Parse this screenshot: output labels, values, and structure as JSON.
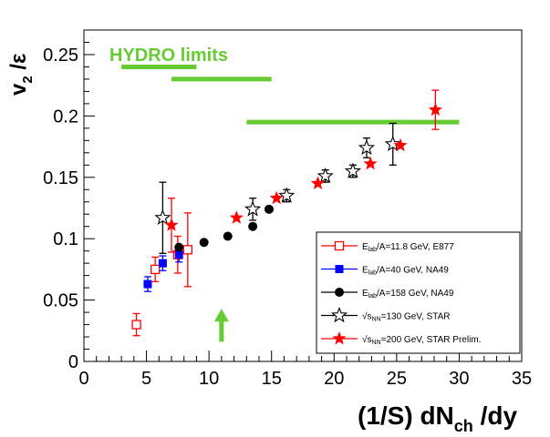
{
  "chart_data": {
    "type": "scatter",
    "title": "",
    "xlabel": "(1/S) dN",
    "xlabel_sub": "ch",
    "xlabel_tail": " /dy",
    "ylabel": "v",
    "ylabel_sub": "2",
    "ylabel_tail": " /ε",
    "xlim": [
      0,
      35
    ],
    "ylim": [
      0,
      0.27
    ],
    "xticks": [
      0,
      5,
      10,
      15,
      20,
      25,
      30,
      35
    ],
    "xtick_labels": [
      "0",
      "5",
      "10",
      "15",
      "20",
      "25",
      "30",
      "35"
    ],
    "yticks": [
      0,
      0.05,
      0.1,
      0.15,
      0.2,
      0.25
    ],
    "ytick_labels": [
      "0",
      "0.05",
      "0.1",
      "0.15",
      "0.2",
      "0.25"
    ],
    "colors": {
      "hydro": "#66cc33",
      "e877": "#ff0000",
      "na49_40": "#0000ff",
      "na49_158": "#000000",
      "star130": "#000000",
      "star200": "#ff0000",
      "arrow": "#66cc33"
    },
    "annotations": {
      "hydro_label": "HYDRO  limits",
      "hydro_limits": [
        {
          "x": [
            3.0,
            9.0
          ],
          "y": 0.24
        },
        {
          "x": [
            7.0,
            15.0
          ],
          "y": 0.23
        },
        {
          "x": [
            13.0,
            30.0
          ],
          "y": 0.195
        }
      ],
      "arrow": {
        "x": 11.0,
        "y_from": 0.016,
        "y_to": 0.04
      }
    },
    "series": [
      {
        "name": "E877",
        "legend_label": {
          "pre": "E",
          "sub": "lab",
          "post": "/A=11.8 GeV, E877"
        },
        "marker": "open-square",
        "points": [
          {
            "x": 4.2,
            "y": 0.03,
            "yerr": 0.009
          },
          {
            "x": 5.7,
            "y": 0.075,
            "yerr": 0.01
          },
          {
            "x": 7.5,
            "y": 0.087,
            "yerr": 0.015
          },
          {
            "x": 8.3,
            "y": 0.091,
            "yerr": 0.03
          }
        ]
      },
      {
        "name": "NA49 40 GeV",
        "legend_label": {
          "pre": "E",
          "sub": "lab",
          "post": "/A=40 GeV, NA49"
        },
        "marker": "filled-square",
        "points": [
          {
            "x": 5.1,
            "y": 0.063,
            "yerr": 0.006
          },
          {
            "x": 6.3,
            "y": 0.08,
            "yerr": 0.006
          },
          {
            "x": 7.6,
            "y": 0.087,
            "yerr": 0.006
          }
        ]
      },
      {
        "name": "NA49 158 GeV",
        "legend_label": {
          "pre": "E",
          "sub": "lab",
          "post": "/A=158 GeV, NA49"
        },
        "marker": "filled-circle",
        "points": [
          {
            "x": 7.6,
            "y": 0.093
          },
          {
            "x": 9.6,
            "y": 0.097
          },
          {
            "x": 11.5,
            "y": 0.102
          },
          {
            "x": 13.5,
            "y": 0.11
          },
          {
            "x": 14.8,
            "y": 0.124
          }
        ]
      },
      {
        "name": "STAR 130 GeV",
        "legend_label": {
          "pre": "√s",
          "sub": "NN",
          "post": "=130 GeV, STAR"
        },
        "marker": "open-star",
        "points": [
          {
            "x": 6.3,
            "y": 0.117,
            "yerr": 0.029
          },
          {
            "x": 13.5,
            "y": 0.124,
            "yerr": 0.009
          },
          {
            "x": 16.2,
            "y": 0.135,
            "yerr": 0.005
          },
          {
            "x": 19.3,
            "y": 0.151,
            "yerr": 0.005
          },
          {
            "x": 21.5,
            "y": 0.155,
            "yerr": 0.005
          },
          {
            "x": 22.6,
            "y": 0.174,
            "yerr": 0.008
          },
          {
            "x": 24.7,
            "y": 0.177,
            "yerr": 0.017
          }
        ]
      },
      {
        "name": "STAR 200 GeV Prelim.",
        "legend_label": {
          "pre": "√s",
          "sub": "NN",
          "post": "=200 GeV, STAR Prelim."
        },
        "marker": "filled-star",
        "points": [
          {
            "x": 7.0,
            "y": 0.111,
            "yerr": 0.022
          },
          {
            "x": 12.2,
            "y": 0.117
          },
          {
            "x": 15.4,
            "y": 0.133
          },
          {
            "x": 18.7,
            "y": 0.145
          },
          {
            "x": 22.9,
            "y": 0.161
          },
          {
            "x": 25.3,
            "y": 0.176
          },
          {
            "x": 28.1,
            "y": 0.205,
            "yerr": 0.016
          }
        ]
      }
    ]
  }
}
